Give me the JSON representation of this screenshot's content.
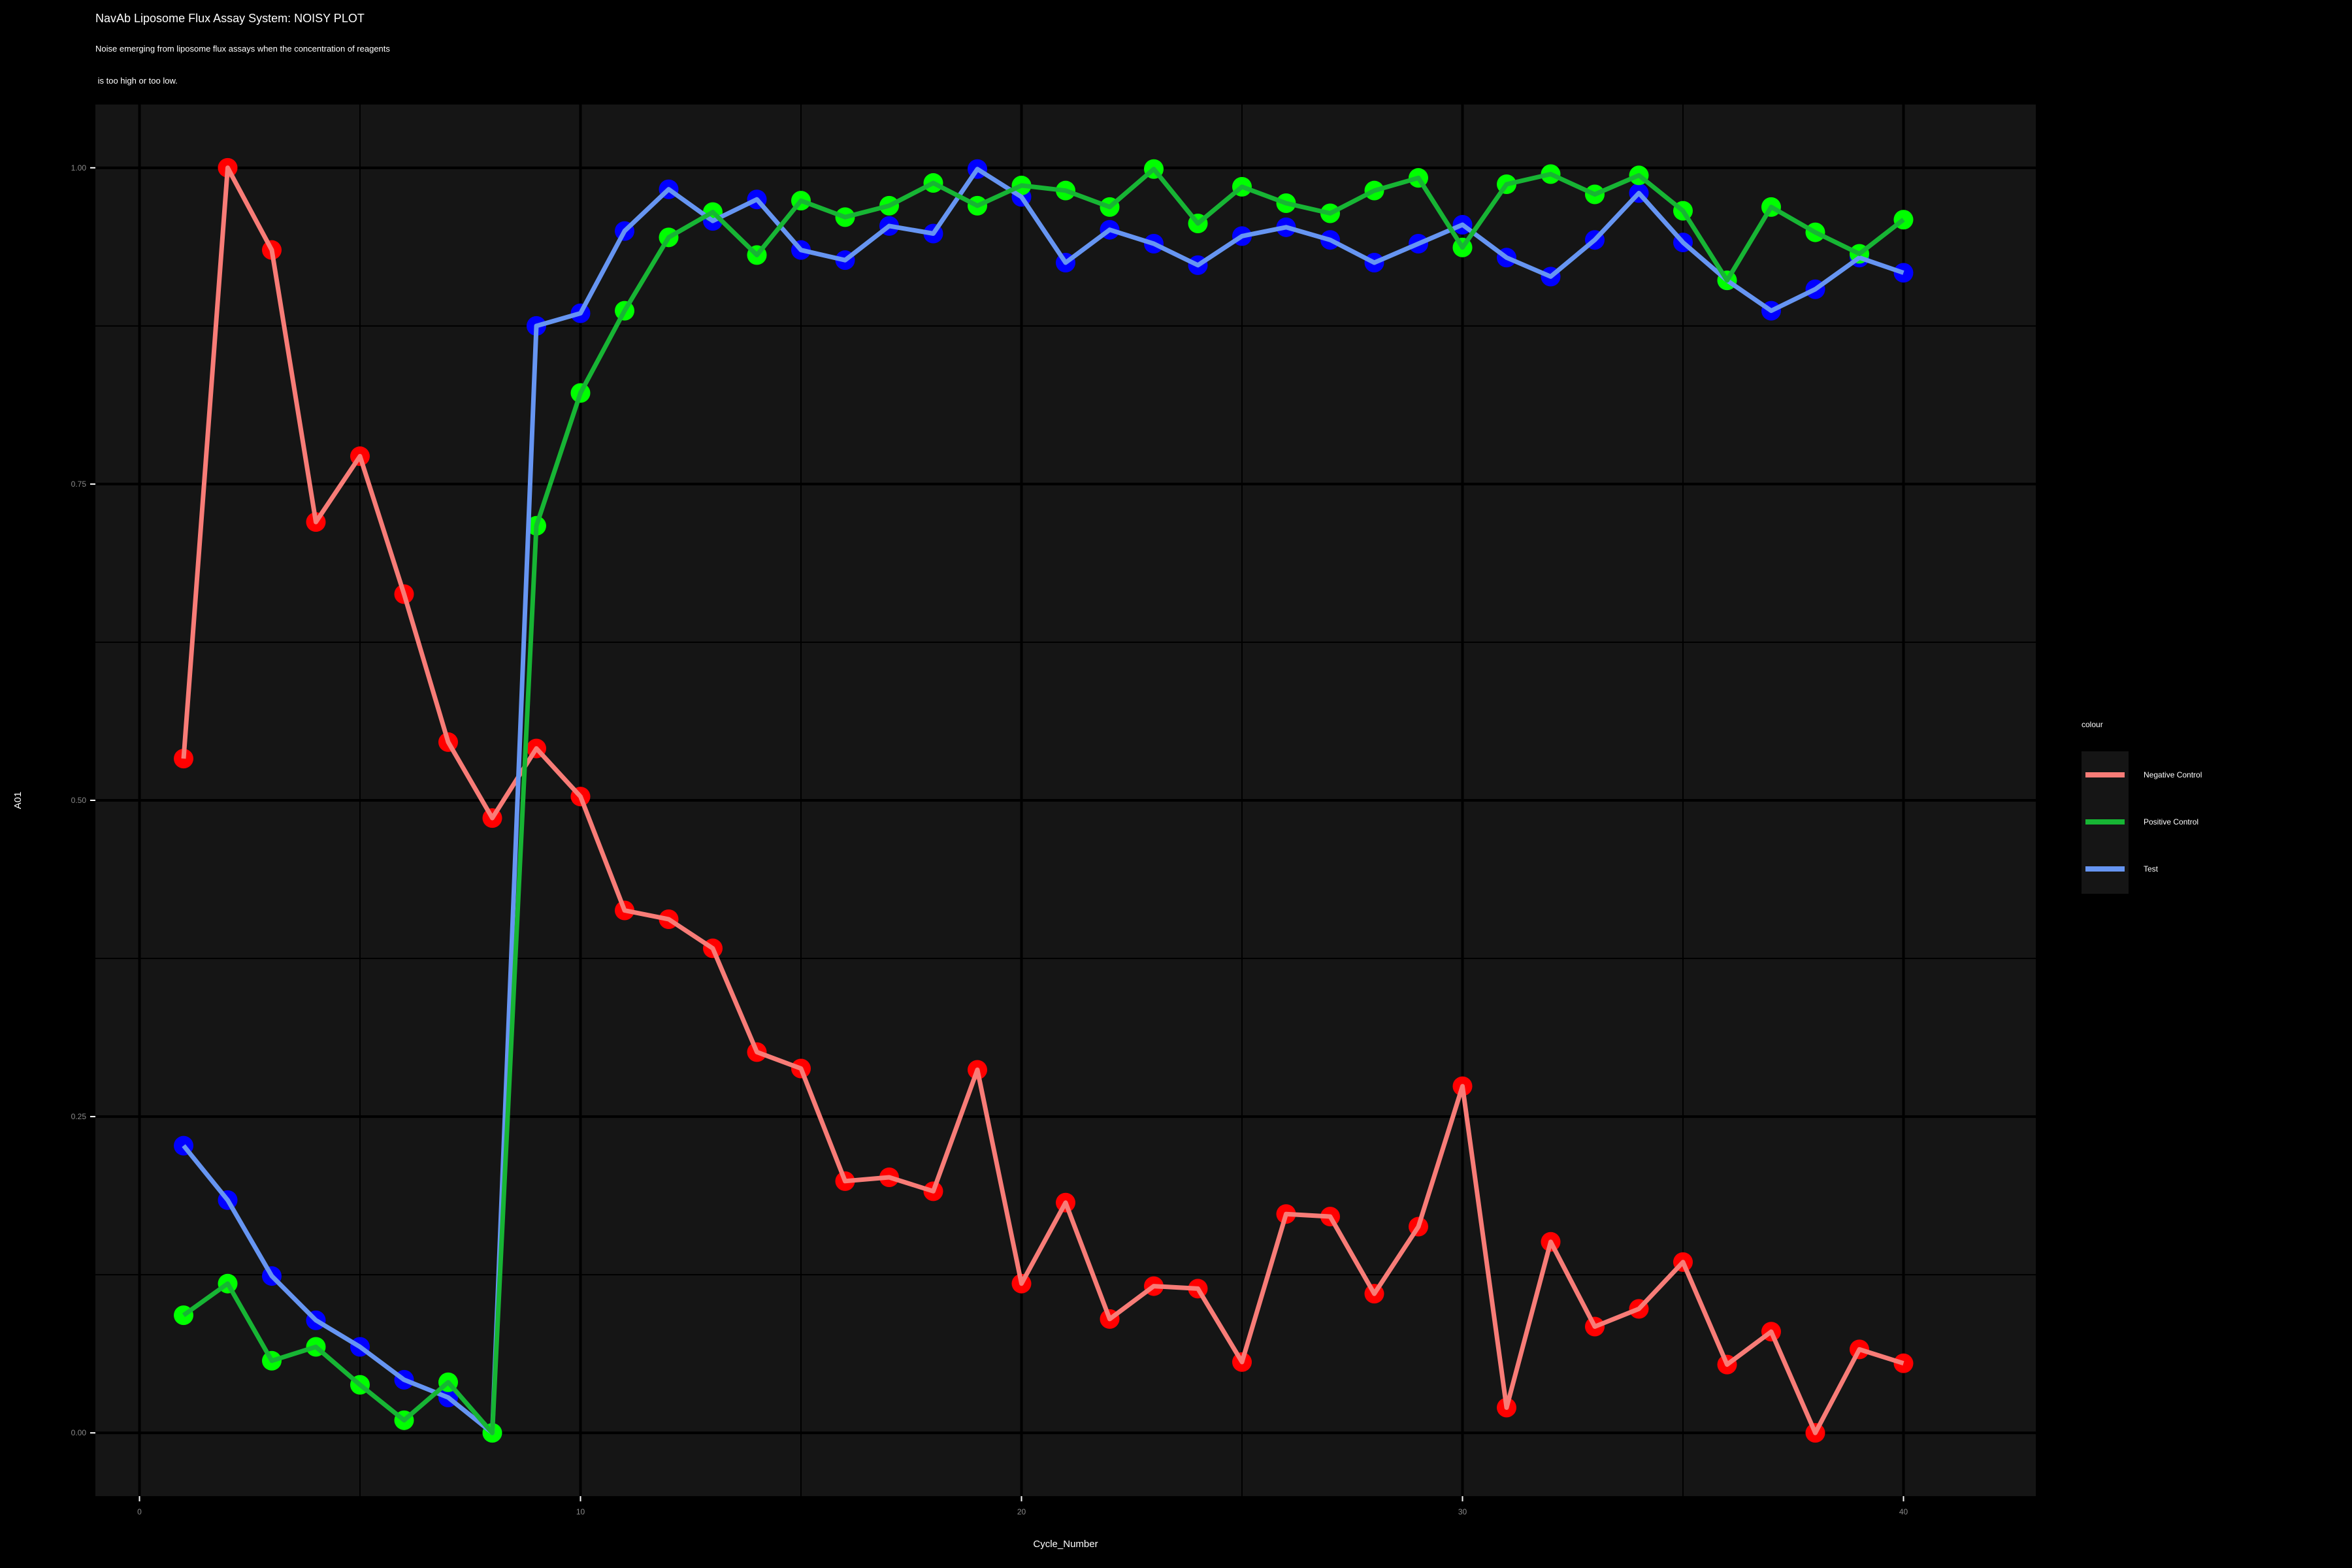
{
  "colors": {
    "background": "#000000",
    "panel": "#151515",
    "grid_major": "#000000",
    "grid_minor": "#000000",
    "negative_line": "#f87c77",
    "negative_point": "#ff0000",
    "positive_line": "#17b534",
    "positive_point": "#00ff00",
    "test_line": "#6695f2",
    "test_point": "#0000ff",
    "text": "#ffffff",
    "tick_text": "#8a8a8a",
    "legend_bg": "#151515"
  },
  "chart_data": {
    "type": "line",
    "title": "NavAb Liposome Flux Assay System: NOISY PLOT",
    "subtitle_line1": "Noise emerging from liposome flux assays when the concentration of reagents",
    "subtitle_line2": " is too high or too low.",
    "xlabel": "Cycle_Number",
    "ylabel": "A01",
    "xlim": [
      -1,
      43
    ],
    "ylim": [
      -0.05,
      1.05
    ],
    "x_ticks": [
      0,
      10,
      20,
      30,
      40
    ],
    "x_tick_labels": [
      "0",
      "10",
      "20",
      "30",
      "40"
    ],
    "y_ticks": [
      0.0,
      0.25,
      0.5,
      0.75,
      1.0
    ],
    "y_tick_labels": [
      "0.00",
      "0.25",
      "0.50",
      "0.75",
      "1.00"
    ],
    "grid": true,
    "legend_title": "colour",
    "legend_position": "right",
    "x": [
      1,
      2,
      3,
      4,
      5,
      6,
      7,
      8,
      9,
      10,
      11,
      12,
      13,
      14,
      15,
      16,
      17,
      18,
      19,
      20,
      21,
      22,
      23,
      24,
      25,
      26,
      27,
      28,
      29,
      30,
      31,
      32,
      33,
      34,
      35,
      36,
      37,
      38,
      39,
      40
    ],
    "series": [
      {
        "name": "Negative Control",
        "values": [
          0.533,
          1.0,
          0.935,
          0.72,
          0.772,
          0.663,
          0.546,
          0.486,
          0.541,
          0.503,
          0.413,
          0.406,
          0.383,
          0.301,
          0.288,
          0.199,
          0.202,
          0.191,
          0.287,
          0.118,
          0.182,
          0.09,
          0.116,
          0.114,
          0.056,
          0.173,
          0.171,
          0.11,
          0.163,
          0.274,
          0.02,
          0.151,
          0.084,
          0.098,
          0.135,
          0.054,
          0.08,
          0.0,
          0.066,
          0.055
        ]
      },
      {
        "name": "Positive Control",
        "values": [
          0.093,
          0.118,
          0.057,
          0.068,
          0.038,
          0.01,
          0.04,
          0.0,
          0.717,
          0.822,
          0.887,
          0.945,
          0.965,
          0.931,
          0.974,
          0.961,
          0.97,
          0.988,
          0.97,
          0.986,
          0.982,
          0.969,
          0.999,
          0.956,
          0.985,
          0.972,
          0.964,
          0.982,
          0.992,
          0.937,
          0.987,
          0.995,
          0.979,
          0.994,
          0.966,
          0.911,
          0.969,
          0.949,
          0.932,
          0.959
        ]
      },
      {
        "name": "Test",
        "values": [
          0.227,
          0.184,
          0.124,
          0.089,
          0.068,
          0.042,
          0.028,
          0.0,
          0.875,
          0.885,
          0.95,
          0.983,
          0.958,
          0.975,
          0.935,
          0.927,
          0.954,
          0.948,
          0.999,
          0.977,
          0.925,
          0.951,
          0.94,
          0.923,
          0.946,
          0.953,
          0.943,
          0.925,
          0.94,
          0.955,
          0.929,
          0.914,
          0.943,
          0.98,
          0.941,
          0.911,
          0.887,
          0.904,
          0.929,
          0.917
        ]
      }
    ]
  }
}
